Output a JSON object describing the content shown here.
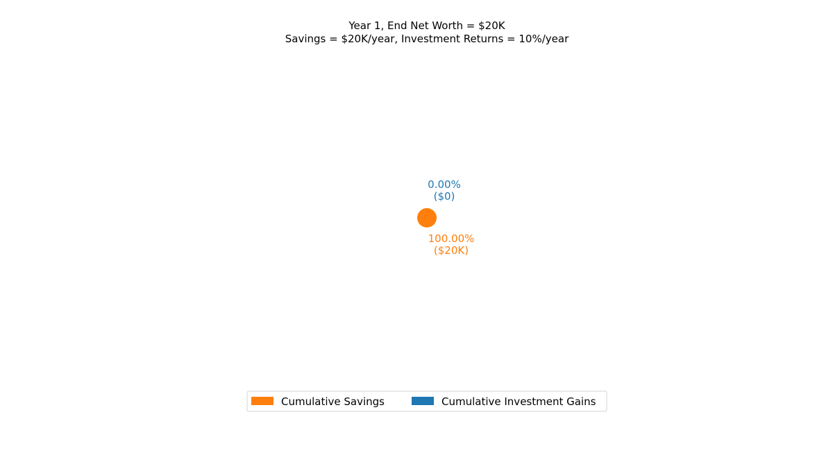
{
  "chart_data": {
    "type": "pie",
    "title": "Year 1, End Net Worth = $20K",
    "subtitle": "Savings = $20K/year, Investment Returns = 10%/year",
    "series": [
      {
        "name": "Cumulative Savings",
        "value": 20000,
        "percent": 100.0,
        "percent_label": "100.00%",
        "value_label": "($20K)",
        "color": "#ff7f0e"
      },
      {
        "name": "Cumulative Investment Gains",
        "value": 0,
        "percent": 0.0,
        "percent_label": "0.00%",
        "value_label": "($0)",
        "color": "#1f77b4"
      }
    ],
    "legend_position": "bottom-center",
    "legend_columns": 2
  }
}
